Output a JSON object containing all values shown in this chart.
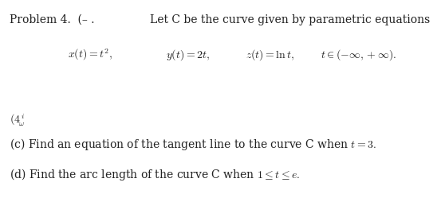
{
  "background_color": "#ffffff",
  "fig_width": 5.53,
  "fig_height": 2.49,
  "dpi": 100,
  "title_line": "Problem 4.  (– .        Let C be the curve given by parametric equations",
  "problem_header_left": "Problem 4.  (– .",
  "problem_header_right": "Let C be the curve given by parametric equations",
  "eq_x": "$x(t) = t^2,$",
  "eq_y": "$y(t) = 2t,$",
  "eq_z": "$z(t) = \\ln t,$",
  "eq_t": "$t \\in (-\\infty, +\\infty).$",
  "label_c": "(c) Find an equation of the tangent line to the curve C when $t = 3.$",
  "label_d": "(d) Find the arc length of the curve C when $1 \\leq t \\leq e.$",
  "weird_label": "$(\\mathit{4}_{\\omega}^{i}$",
  "fontsize": 10.0,
  "text_color": "#222222"
}
